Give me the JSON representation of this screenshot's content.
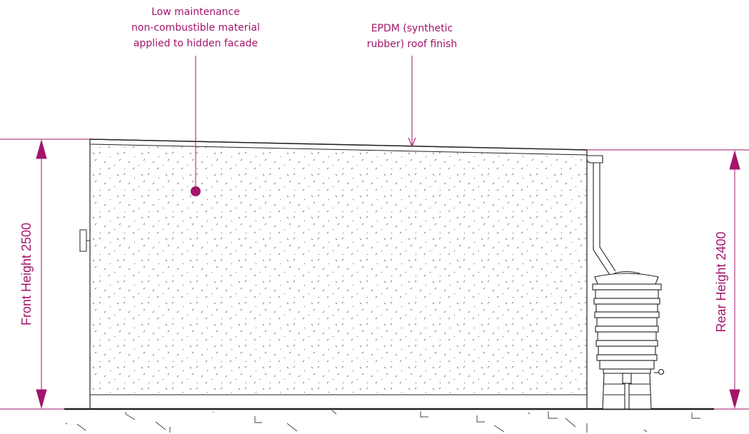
{
  "annotations": {
    "facade": {
      "lines": [
        "Low maintenance",
        "non-combustible material",
        "applied to hidden facade"
      ]
    },
    "roof": {
      "lines": [
        "EPDM (synthetic",
        "rubber) roof finish"
      ]
    }
  },
  "dimensions": {
    "front": "Front Height 2500",
    "rear": "Rear Height 2400"
  },
  "colors": {
    "accent": "#a3146a",
    "linework": "#222222"
  }
}
